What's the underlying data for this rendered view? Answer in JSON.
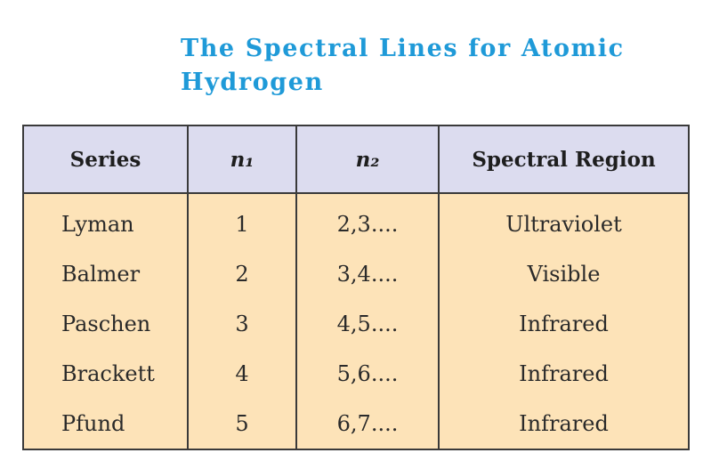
{
  "header": {
    "title": "The Spectral Lines for Atomic Hydrogen"
  },
  "table": {
    "columns": [
      "Series",
      "n₁",
      "n₂",
      "Spectral Region"
    ],
    "rows": [
      [
        "Lyman",
        1,
        "2,3....",
        "Ultraviolet"
      ],
      [
        "Balmer",
        2,
        "3,4....",
        "Visible"
      ],
      [
        "Paschen",
        3,
        "4,5....",
        "Infrared"
      ],
      [
        "Brackett",
        4,
        "5,6....",
        "Infrared"
      ],
      [
        "Pfund",
        5,
        "6,7....",
        "Infrared"
      ]
    ]
  }
}
